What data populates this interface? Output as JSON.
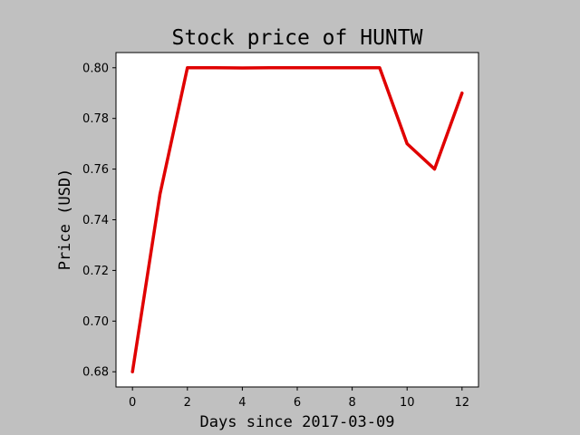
{
  "chart_data": {
    "type": "line",
    "title": "Stock price of HUNTW",
    "xlabel": "Days since 2017-03-09",
    "ylabel": "Price (USD)",
    "x": [
      0,
      1,
      2,
      3,
      4,
      5,
      6,
      7,
      8,
      9,
      10,
      11,
      12
    ],
    "series": [
      {
        "values": [
          0.68,
          0.75,
          0.8,
          0.8,
          0.7999,
          0.8,
          0.8,
          0.8,
          0.8,
          0.8,
          0.77,
          0.76,
          0.79
        ]
      }
    ],
    "xlim": [
      -0.6,
      12.6
    ],
    "ylim": [
      0.674,
      0.806
    ],
    "xticks": [
      0,
      2,
      4,
      6,
      8,
      10,
      12
    ],
    "yticks": [
      0.68,
      0.7,
      0.72,
      0.74,
      0.76,
      0.78,
      0.8
    ],
    "xtick_labels": [
      "0",
      "2",
      "4",
      "6",
      "8",
      "10",
      "12"
    ],
    "ytick_labels": [
      "0.68",
      "0.70",
      "0.72",
      "0.74",
      "0.76",
      "0.78",
      "0.80"
    ],
    "grid": false,
    "colors": {
      "background": "#c0c0c0",
      "plot_area": "#ffffff",
      "line": "#e00000",
      "axis": "#000000"
    }
  }
}
